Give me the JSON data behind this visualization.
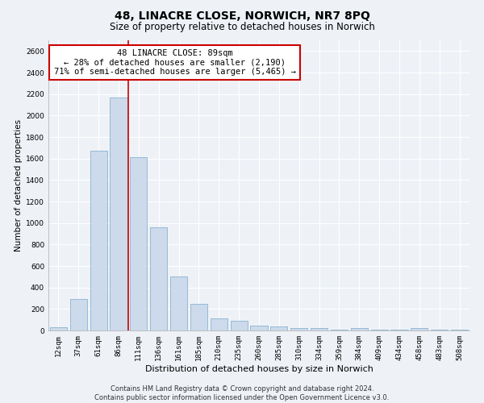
{
  "title": "48, LINACRE CLOSE, NORWICH, NR7 8PQ",
  "subtitle": "Size of property relative to detached houses in Norwich",
  "xlabel": "Distribution of detached houses by size in Norwich",
  "ylabel": "Number of detached properties",
  "categories": [
    "12sqm",
    "37sqm",
    "61sqm",
    "86sqm",
    "111sqm",
    "136sqm",
    "161sqm",
    "185sqm",
    "210sqm",
    "235sqm",
    "260sqm",
    "285sqm",
    "310sqm",
    "334sqm",
    "359sqm",
    "384sqm",
    "409sqm",
    "434sqm",
    "458sqm",
    "483sqm",
    "508sqm"
  ],
  "values": [
    30,
    290,
    1670,
    2170,
    1610,
    960,
    500,
    245,
    115,
    90,
    45,
    40,
    25,
    20,
    10,
    20,
    5,
    5,
    20,
    5,
    10
  ],
  "bar_color": "#ccdaeb",
  "bar_edge_color": "#7aaac8",
  "vline_index": 3.5,
  "vline_color": "#cc0000",
  "annotation_text": "48 LINACRE CLOSE: 89sqm\n← 28% of detached houses are smaller (2,190)\n71% of semi-detached houses are larger (5,465) →",
  "annotation_box_color": "#ffffff",
  "annotation_box_edge": "#cc0000",
  "ylim": [
    0,
    2700
  ],
  "yticks": [
    0,
    200,
    400,
    600,
    800,
    1000,
    1200,
    1400,
    1600,
    1800,
    2000,
    2200,
    2400,
    2600
  ],
  "footer_line1": "Contains HM Land Registry data © Crown copyright and database right 2024.",
  "footer_line2": "Contains public sector information licensed under the Open Government Licence v3.0.",
  "background_color": "#eef2f7",
  "grid_color": "#ffffff",
  "title_fontsize": 10,
  "subtitle_fontsize": 8.5,
  "ylabel_fontsize": 7.5,
  "xlabel_fontsize": 8,
  "tick_fontsize": 6.5,
  "annotation_fontsize": 7.5,
  "footer_fontsize": 6
}
